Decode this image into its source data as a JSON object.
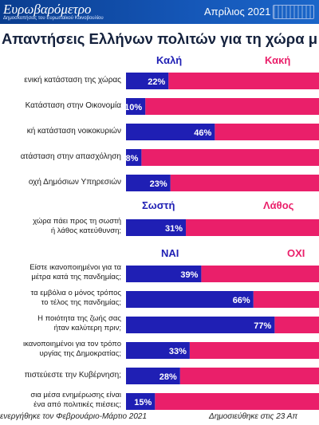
{
  "header": {
    "brand": "Ευρωβαρόμετρο",
    "brand_sub": "Δημοσκοπήσεις του Ευρωπαϊκού Κοινοβουλίου",
    "date": "Απρίλιος 2021"
  },
  "colors": {
    "positive": "#1f1fb4",
    "negative": "#ea1f6a",
    "header": "#0a3d8f"
  },
  "chart_data": {
    "type": "bar",
    "title": "Απαντήσεις Ελλήνων πολιτών για τη χώρα μ",
    "sections": [
      {
        "labels": [
          "Καλή",
          "Κακή"
        ],
        "rows": [
          {
            "label": [
              "ενική κατάσταση της χώρας"
            ],
            "value": 22
          },
          {
            "label": [
              "Κατάσταση στην Οικονομία"
            ],
            "value": 10
          },
          {
            "label": [
              "κή κατάσταση νοικοκυριών"
            ],
            "value": 46
          },
          {
            "label": [
              "ατάσταση στην απασχόληση"
            ],
            "value": 8
          },
          {
            "label": [
              "οχή Δημόσιων Υπηρεσιών"
            ],
            "value": 23
          }
        ]
      },
      {
        "labels": [
          "Σωστή",
          "Λάθος"
        ],
        "rows": [
          {
            "label": [
              "χώρα πάει προς τη σωστή",
              "ή λάθος κατεύθυνση;"
            ],
            "value": 31
          }
        ]
      },
      {
        "labels": [
          "ΝΑΙ",
          "ΟΧΙ"
        ],
        "rows": [
          {
            "label": [
              "Είστε ικανοποιημένοι για τα",
              "μέτρα κατά της πανδημίας;"
            ],
            "value": 39
          },
          {
            "label": [
              "τα εμβόλια ο μόνος τρόπος",
              "το τέλος της πανδημίας;"
            ],
            "value": 66
          },
          {
            "label": [
              "Η ποιότητα της ζωής σας",
              "ήταν καλύτερη πριν;"
            ],
            "value": 77
          },
          {
            "label": [
              "ικανοποιημένοι για τον τρόπο",
              "υργίας της Δημοκρατίας;"
            ],
            "value": 33
          },
          {
            "label": [
              "πιστεύεστε την Κυβέρνηση;"
            ],
            "value": 28
          },
          {
            "label": [
              "σια μέσα ενημέρωσης είναι",
              "ένα από πολιτικές πιέσεις;"
            ],
            "value": 15
          }
        ]
      }
    ],
    "xlim": [
      0,
      100
    ],
    "grid": false,
    "value_suffix": "%"
  },
  "footer": {
    "left": "ενεργήθηκε τον Φεβρουάριο-Μάρτιο 2021",
    "right": "Δημοσιεύθηκε στις 23 Απ"
  }
}
